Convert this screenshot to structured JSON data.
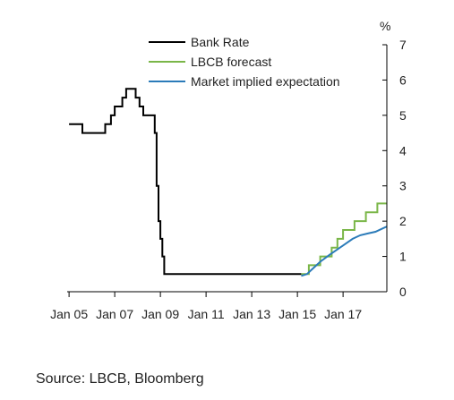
{
  "chart_data": {
    "type": "line",
    "ylabel": "%",
    "ylim": [
      0,
      7
    ],
    "yticks": [
      0,
      1,
      2,
      3,
      4,
      5,
      6,
      7
    ],
    "xlim": [
      "2004-12",
      "2018-12"
    ],
    "xticks": [
      {
        "label": "Jan 05",
        "value": "2005-01"
      },
      {
        "label": "Jan 07",
        "value": "2007-01"
      },
      {
        "label": "Jan 09",
        "value": "2009-01"
      },
      {
        "label": "Jan 11",
        "value": "2011-01"
      },
      {
        "label": "Jan 13",
        "value": "2013-01"
      },
      {
        "label": "Jan 15",
        "value": "2015-01"
      },
      {
        "label": "Jan 17",
        "value": "2017-01"
      }
    ],
    "legend_position": "top-center",
    "grid": false,
    "y_axis_side": "right",
    "series": [
      {
        "name": "Bank Rate",
        "color": "#000000",
        "step": true,
        "points": [
          [
            "2005-01",
            4.75
          ],
          [
            "2005-08",
            4.5
          ],
          [
            "2006-08",
            4.75
          ],
          [
            "2006-11",
            5.0
          ],
          [
            "2007-01",
            5.25
          ],
          [
            "2007-05",
            5.5
          ],
          [
            "2007-07",
            5.75
          ],
          [
            "2007-12",
            5.5
          ],
          [
            "2008-02",
            5.25
          ],
          [
            "2008-04",
            5.0
          ],
          [
            "2008-10",
            4.5
          ],
          [
            "2008-11",
            3.0
          ],
          [
            "2008-12",
            2.0
          ],
          [
            "2009-01",
            1.5
          ],
          [
            "2009-02",
            1.0
          ],
          [
            "2009-03",
            0.5
          ],
          [
            "2015-03",
            0.5
          ]
        ]
      },
      {
        "name": "LBCB forecast",
        "color": "#7ab648",
        "step": true,
        "points": [
          [
            "2015-03",
            0.5
          ],
          [
            "2015-07",
            0.75
          ],
          [
            "2016-01",
            1.0
          ],
          [
            "2016-07",
            1.25
          ],
          [
            "2016-10",
            1.5
          ],
          [
            "2017-01",
            1.75
          ],
          [
            "2017-07",
            2.0
          ],
          [
            "2018-01",
            2.25
          ],
          [
            "2018-07",
            2.5
          ],
          [
            "2018-12",
            2.5
          ]
        ]
      },
      {
        "name": "Market implied expectation",
        "color": "#2b7bb9",
        "step": false,
        "points": [
          [
            "2015-03",
            0.45
          ],
          [
            "2015-06",
            0.5
          ],
          [
            "2015-09",
            0.65
          ],
          [
            "2016-01",
            0.85
          ],
          [
            "2016-06",
            1.05
          ],
          [
            "2016-10",
            1.2
          ],
          [
            "2017-02",
            1.35
          ],
          [
            "2017-06",
            1.5
          ],
          [
            "2017-10",
            1.6
          ],
          [
            "2018-02",
            1.65
          ],
          [
            "2018-06",
            1.7
          ],
          [
            "2018-12",
            1.85
          ]
        ]
      }
    ]
  },
  "source": "Source: LBCB, Bloomberg"
}
